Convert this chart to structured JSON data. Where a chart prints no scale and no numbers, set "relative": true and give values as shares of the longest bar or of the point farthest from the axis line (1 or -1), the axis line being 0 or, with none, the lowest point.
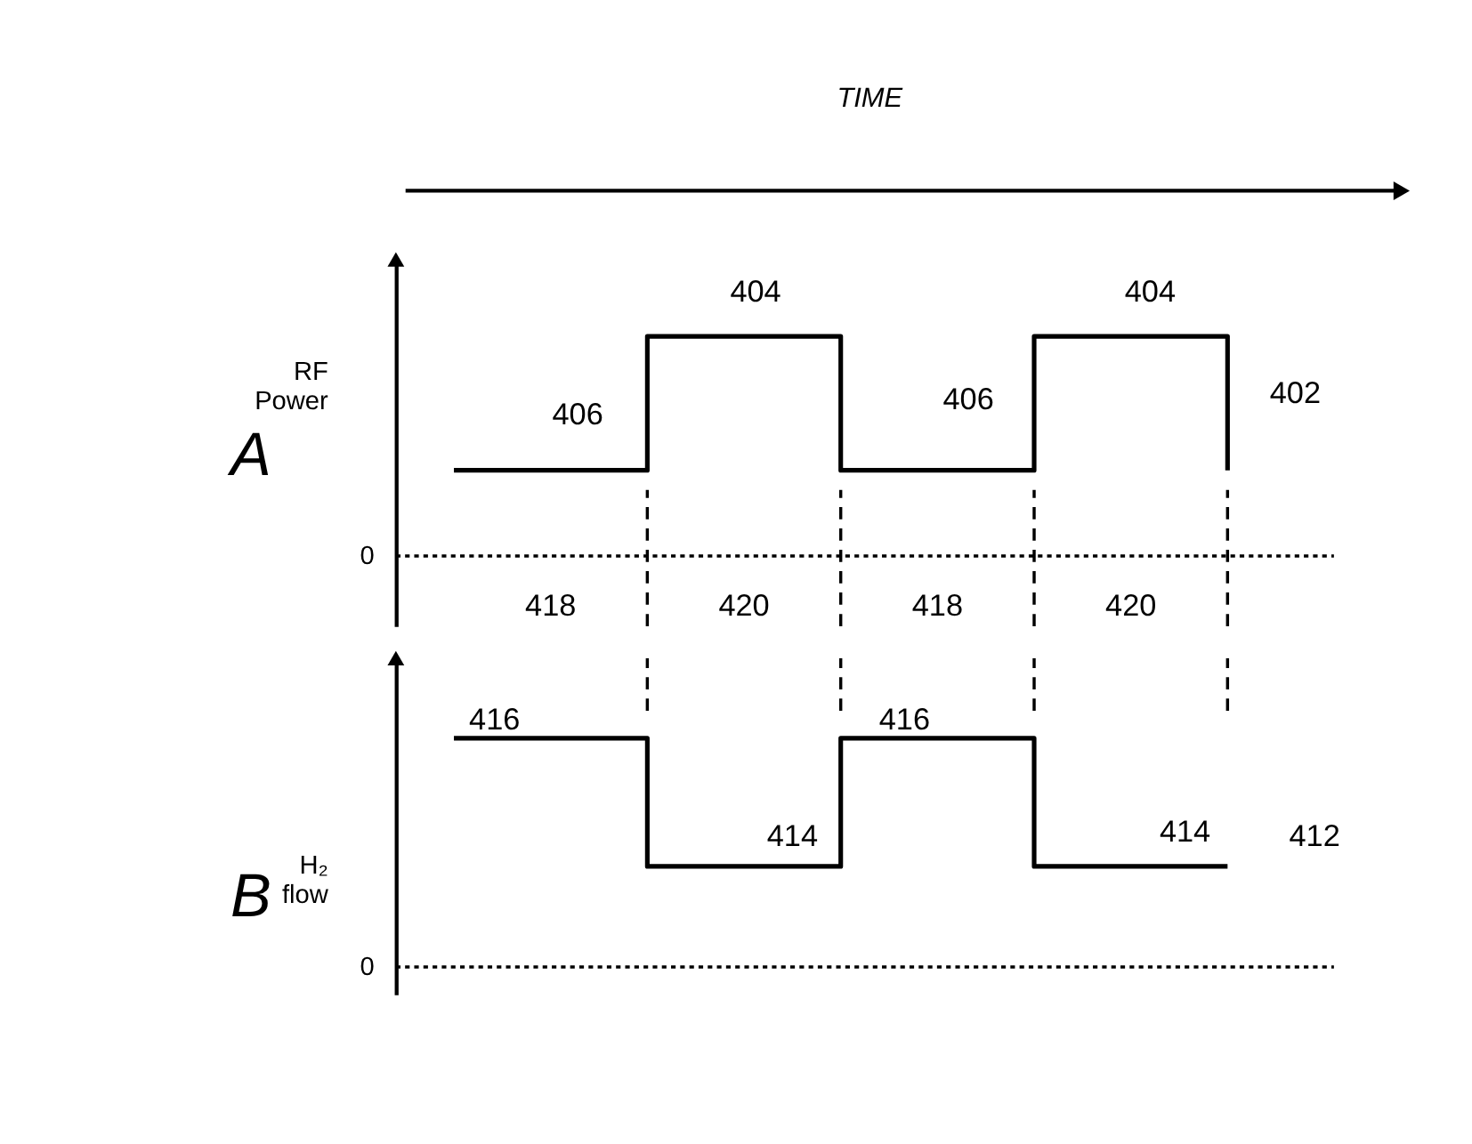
{
  "chart_data": [
    {
      "type": "step",
      "title": "TIME",
      "ylabel": "RF Power",
      "categories": [
        null,
        null,
        null,
        null,
        null
      ],
      "relative": true,
      "series": [
        {
          "color": "#000000",
          "values": [
            0.39,
            1,
            0.39,
            1,
            0.39
          ]
        }
      ],
      "ref_lines": [
        {
          "axis": "y",
          "value": 0,
          "label": "0",
          "line_style": "dotted",
          "color": "#000000"
        }
      ],
      "annotations": [
        "406",
        "404",
        "406",
        "404",
        "402",
        "418",
        "420",
        "418",
        "420",
        "A"
      ]
    },
    {
      "type": "step",
      "ylabel": "H₂ flow",
      "categories": [
        null,
        null,
        null,
        null,
        null
      ],
      "relative": true,
      "series": [
        {
          "color": "#000000",
          "values": [
            1,
            0.44,
            1,
            0.44,
            0.44
          ]
        }
      ],
      "ref_lines": [
        {
          "axis": "y",
          "value": 0,
          "label": "0",
          "line_style": "dotted",
          "color": "#000000"
        }
      ],
      "annotations": [
        "416",
        "414",
        "416",
        "414",
        "412",
        "B"
      ]
    }
  ]
}
